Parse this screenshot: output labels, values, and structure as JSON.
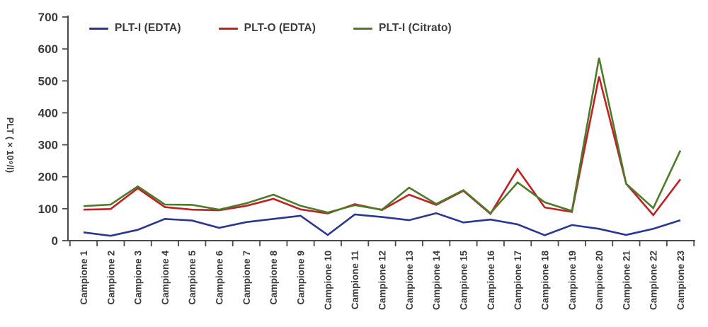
{
  "figure": {
    "background": "#ffffff",
    "axis_color": "#4a4a4a",
    "text_color": "#3b3b3b"
  },
  "chart_data": {
    "type": "line",
    "title": "",
    "xlabel": "",
    "ylabel": "PLT ( × 10⁹/l)",
    "ylim": [
      0,
      700
    ],
    "y_ticks": [
      0,
      100,
      200,
      300,
      400,
      500,
      600,
      700
    ],
    "grid": false,
    "legend_position": "top-inside",
    "categories": [
      "Campione 1",
      "Campione 2",
      "Campione 3",
      "Campione 4",
      "Campione 5",
      "Campione 6",
      "Campione 7",
      "Campione 8",
      "Campione 9",
      "Campione 10",
      "Campione 11",
      "Campione 12",
      "Campione 13",
      "Campione 14",
      "Campione 15",
      "Campione 16",
      "Campione 17",
      "Campione 18",
      "Campione 19",
      "Campione 20",
      "Campione 21",
      "Campione 22",
      "Campione 23"
    ],
    "series": [
      {
        "name": "PLT-I (EDTA)",
        "color": "#2a3790",
        "values": [
          26,
          15,
          34,
          68,
          63,
          40,
          58,
          68,
          78,
          18,
          82,
          74,
          64,
          86,
          57,
          66,
          51,
          17,
          49,
          37,
          18,
          37,
          64
        ]
      },
      {
        "name": "PLT-O (EDTA)",
        "color": "#bf2125",
        "values": [
          97,
          99,
          164,
          105,
          97,
          95,
          109,
          131,
          98,
          85,
          114,
          96,
          144,
          112,
          156,
          84,
          224,
          104,
          90,
          514,
          178,
          80,
          192
        ]
      },
      {
        "name": "PLT-I (Citrato)",
        "color": "#4e7b2a",
        "values": [
          108,
          113,
          170,
          113,
          112,
          97,
          117,
          144,
          109,
          88,
          111,
          97,
          166,
          115,
          158,
          86,
          182,
          120,
          93,
          572,
          178,
          102,
          282
        ]
      }
    ]
  }
}
